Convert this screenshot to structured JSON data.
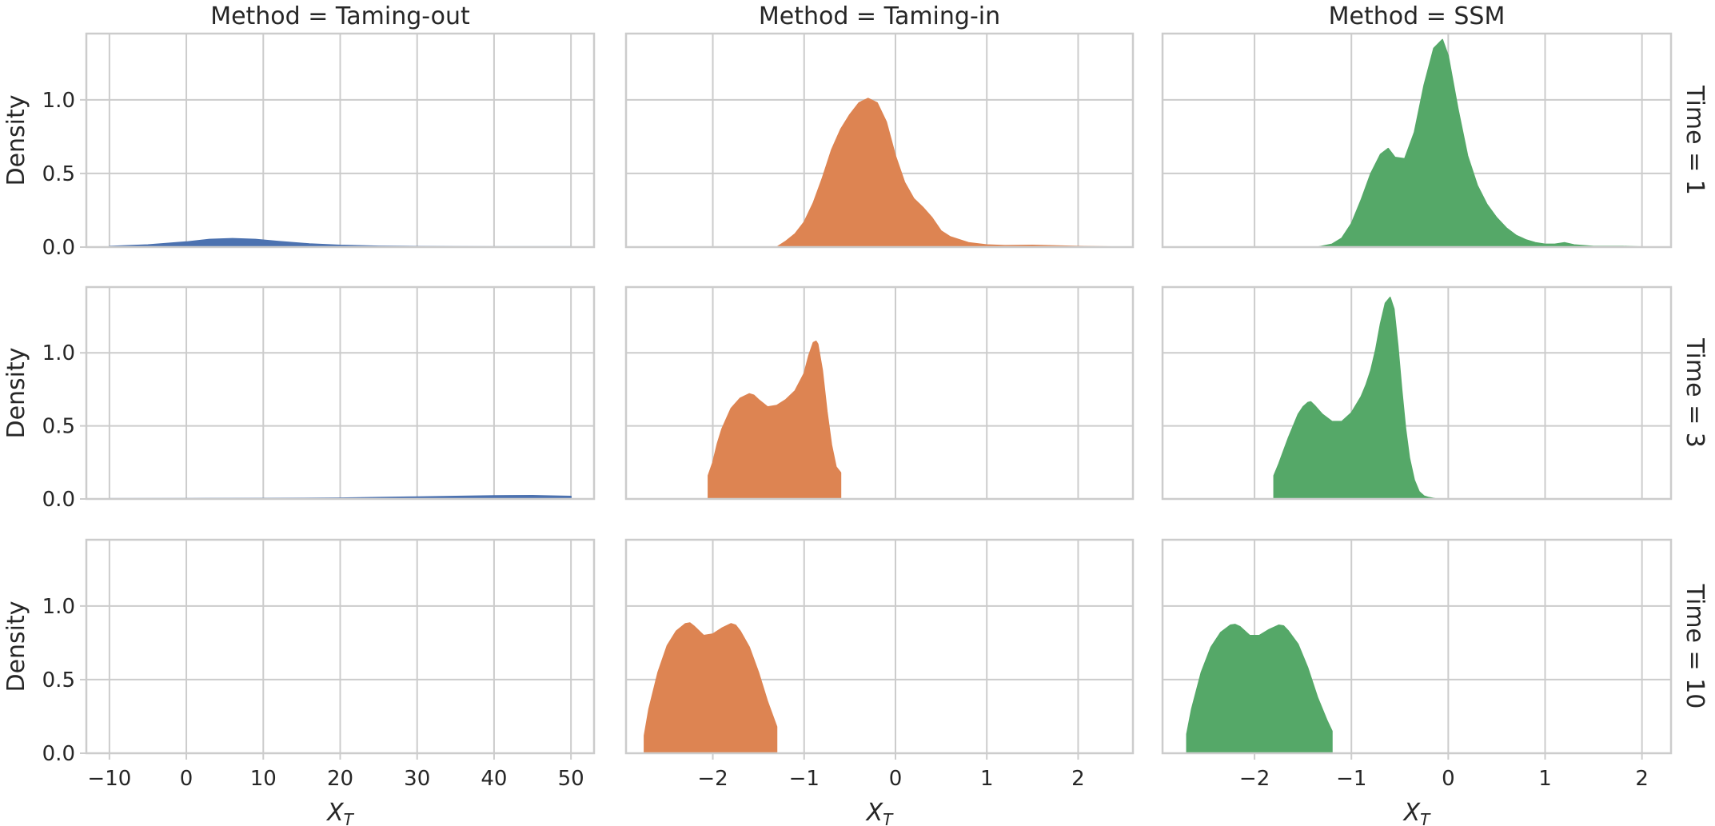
{
  "figure": {
    "col_titles": [
      "Method = Taming-out",
      "Method = Taming-in",
      "Method = SSM"
    ],
    "row_titles": [
      "Time = 1",
      "Time = 3",
      "Time = 10"
    ],
    "xlabel_main": "X",
    "xlabel_sub": "T",
    "ylabel": "Density"
  },
  "chart_data": {
    "type": "area",
    "grid": true,
    "y_axis": {
      "ylim": [
        0,
        1.45
      ],
      "ticks": [
        0.0,
        0.5,
        1.0
      ],
      "tick_labels": [
        "0.0",
        "0.5",
        "1.0"
      ],
      "shared": true
    },
    "columns": [
      {
        "method": "Taming-out",
        "color": "#4c72b0",
        "xlim": [
          -13,
          53
        ],
        "x_ticks": [
          -10,
          0,
          10,
          20,
          30,
          40,
          50
        ],
        "x_tick_labels": [
          "−10",
          "0",
          "10",
          "20",
          "30",
          "40",
          "50"
        ]
      },
      {
        "method": "Taming-in",
        "color": "#dd8452",
        "xlim": [
          -2.95,
          2.6
        ],
        "x_ticks": [
          -2,
          -1,
          0,
          1,
          2
        ],
        "x_tick_labels": [
          "−2",
          "−1",
          "0",
          "1",
          "2"
        ]
      },
      {
        "method": "SSM",
        "color": "#55a868",
        "xlim": [
          -2.95,
          2.3
        ],
        "x_ticks": [
          -2,
          -1,
          0,
          1,
          2
        ],
        "x_tick_labels": [
          "−2",
          "−1",
          "0",
          "1",
          "2"
        ]
      }
    ],
    "panels": [
      {
        "row": 0,
        "col": 0,
        "x": [
          -10,
          -5,
          0,
          3,
          6,
          9,
          12,
          16,
          20,
          25,
          30,
          35,
          40,
          45,
          50
        ],
        "y": [
          0.005,
          0.015,
          0.035,
          0.052,
          0.058,
          0.052,
          0.038,
          0.022,
          0.012,
          0.006,
          0.004,
          0.003,
          0.002,
          0.002,
          0.002
        ]
      },
      {
        "row": 0,
        "col": 1,
        "x": [
          -1.3,
          -1.2,
          -1.1,
          -1.0,
          -0.9,
          -0.8,
          -0.7,
          -0.6,
          -0.5,
          -0.4,
          -0.3,
          -0.2,
          -0.1,
          0.0,
          0.1,
          0.2,
          0.3,
          0.4,
          0.5,
          0.6,
          0.8,
          1.0,
          1.2,
          1.5,
          2.0,
          2.5
        ],
        "y": [
          0.0,
          0.04,
          0.09,
          0.17,
          0.3,
          0.47,
          0.66,
          0.8,
          0.9,
          0.98,
          1.01,
          0.98,
          0.85,
          0.62,
          0.44,
          0.33,
          0.27,
          0.2,
          0.11,
          0.07,
          0.03,
          0.015,
          0.01,
          0.012,
          0.005,
          0.0
        ]
      },
      {
        "row": 0,
        "col": 2,
        "x": [
          -1.35,
          -1.2,
          -1.1,
          -1.0,
          -0.9,
          -0.8,
          -0.7,
          -0.62,
          -0.55,
          -0.45,
          -0.35,
          -0.25,
          -0.15,
          -0.06,
          0.0,
          0.1,
          0.2,
          0.3,
          0.4,
          0.5,
          0.6,
          0.7,
          0.8,
          0.9,
          1.0,
          1.1,
          1.2,
          1.3,
          1.5,
          1.8,
          2.05
        ],
        "y": [
          0.0,
          0.02,
          0.06,
          0.16,
          0.32,
          0.5,
          0.63,
          0.67,
          0.61,
          0.6,
          0.78,
          1.1,
          1.35,
          1.41,
          1.3,
          0.94,
          0.62,
          0.42,
          0.29,
          0.2,
          0.13,
          0.08,
          0.05,
          0.03,
          0.02,
          0.02,
          0.03,
          0.015,
          0.005,
          0.005,
          0.0
        ]
      },
      {
        "row": 1,
        "col": 0,
        "x": [
          -10,
          0,
          10,
          20,
          25,
          30,
          35,
          40,
          45,
          48,
          50
        ],
        "y": [
          0.002,
          0.003,
          0.004,
          0.006,
          0.01,
          0.014,
          0.018,
          0.022,
          0.023,
          0.02,
          0.018
        ]
      },
      {
        "row": 1,
        "col": 1,
        "x": [
          -2.05,
          -2.05,
          -2.0,
          -1.95,
          -1.9,
          -1.85,
          -1.8,
          -1.7,
          -1.6,
          -1.55,
          -1.5,
          -1.4,
          -1.3,
          -1.2,
          -1.1,
          -1.0,
          -0.95,
          -0.9,
          -0.87,
          -0.85,
          -0.8,
          -0.75,
          -0.7,
          -0.65,
          -0.6,
          -0.6
        ],
        "y": [
          0.0,
          0.16,
          0.25,
          0.38,
          0.48,
          0.55,
          0.62,
          0.69,
          0.72,
          0.71,
          0.68,
          0.63,
          0.64,
          0.68,
          0.74,
          0.86,
          0.98,
          1.07,
          1.08,
          1.06,
          0.88,
          0.6,
          0.37,
          0.22,
          0.18,
          0.0
        ]
      },
      {
        "row": 1,
        "col": 2,
        "x": [
          -1.8,
          -1.8,
          -1.75,
          -1.7,
          -1.65,
          -1.6,
          -1.55,
          -1.5,
          -1.45,
          -1.42,
          -1.38,
          -1.3,
          -1.2,
          -1.1,
          -1.0,
          -0.9,
          -0.85,
          -0.8,
          -0.75,
          -0.7,
          -0.65,
          -0.6,
          -0.56,
          -0.52,
          -0.48,
          -0.44,
          -0.4,
          -0.35,
          -0.3,
          -0.25,
          -0.2,
          -0.12
        ],
        "y": [
          0.0,
          0.16,
          0.24,
          0.33,
          0.42,
          0.5,
          0.58,
          0.63,
          0.66,
          0.665,
          0.64,
          0.58,
          0.53,
          0.53,
          0.59,
          0.7,
          0.78,
          0.88,
          1.02,
          1.2,
          1.34,
          1.38,
          1.3,
          1.05,
          0.75,
          0.48,
          0.28,
          0.13,
          0.05,
          0.02,
          0.01,
          0.0
        ]
      },
      {
        "row": 2,
        "col": 1,
        "x": [
          -2.75,
          -2.75,
          -2.7,
          -2.6,
          -2.5,
          -2.4,
          -2.3,
          -2.25,
          -2.2,
          -2.1,
          -2.0,
          -1.9,
          -1.8,
          -1.75,
          -1.7,
          -1.6,
          -1.5,
          -1.4,
          -1.3,
          -1.3
        ],
        "y": [
          0.0,
          0.12,
          0.3,
          0.55,
          0.73,
          0.83,
          0.88,
          0.885,
          0.86,
          0.8,
          0.81,
          0.85,
          0.88,
          0.87,
          0.83,
          0.72,
          0.55,
          0.35,
          0.18,
          0.0
        ]
      },
      {
        "row": 2,
        "col": 2,
        "x": [
          -2.7,
          -2.7,
          -2.65,
          -2.55,
          -2.45,
          -2.35,
          -2.25,
          -2.2,
          -2.15,
          -2.05,
          -1.95,
          -1.85,
          -1.75,
          -1.7,
          -1.65,
          -1.55,
          -1.45,
          -1.35,
          -1.25,
          -1.2,
          -1.2
        ],
        "y": [
          0.0,
          0.13,
          0.3,
          0.55,
          0.72,
          0.82,
          0.87,
          0.875,
          0.86,
          0.8,
          0.8,
          0.84,
          0.87,
          0.865,
          0.83,
          0.74,
          0.58,
          0.38,
          0.22,
          0.15,
          0.0
        ]
      }
    ]
  }
}
